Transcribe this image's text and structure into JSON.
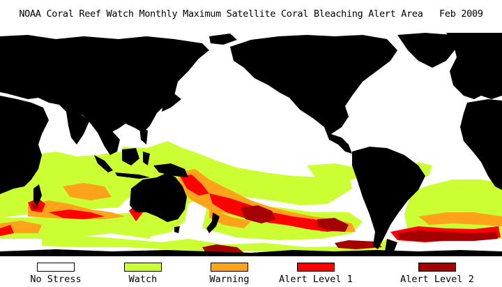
{
  "title": "NOAA Coral Reef Watch Monthly Maximum Satellite Coral Bleaching Alert Area   Feb 2009",
  "colors": {
    "land": "#000000",
    "ocean": "#ffffff",
    "no_stress": "#ffffff",
    "watch": "#ccff33",
    "warning": "#ffa31a",
    "alert1": "#ff0000",
    "alert2": "#a50000"
  },
  "legend": [
    {
      "label": "No Stress",
      "color": "#ffffff"
    },
    {
      "label": "Watch",
      "color": "#ccff33"
    },
    {
      "label": "Warning",
      "color": "#ffa31a"
    },
    {
      "label": "Alert Level 1",
      "color": "#ff0000"
    },
    {
      "label": "Alert Level 2",
      "color": "#a50000"
    }
  ]
}
